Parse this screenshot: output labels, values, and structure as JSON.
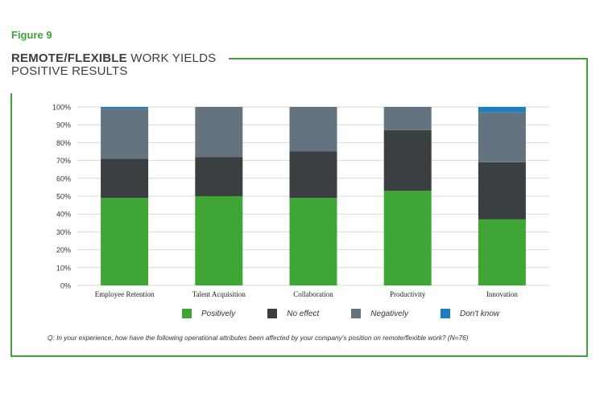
{
  "figure_label": "Figure 9",
  "title": {
    "bold": "REMOTE/FLEXIBLE",
    "line1_rest": " WORK YIELDS",
    "line2": "POSITIVE RESULTS"
  },
  "question": "Q: In your experience, how have the following operational attributes been affected by your company's position on remote/flexible work? (N=76)",
  "colors": {
    "frame": "#3fa535",
    "positively": "#3fa535",
    "no_effect": "#3a3f42",
    "negatively": "#637480",
    "dont_know": "#1c7ec1",
    "grid": "#d9d9d9"
  },
  "chart_data": {
    "type": "bar",
    "stacked": true,
    "categories": [
      "Employee Retention",
      "Talent Acquisition",
      "Collaboration",
      "Productivity",
      "Innovation"
    ],
    "series": [
      {
        "name": "Positively",
        "values": [
          49,
          50,
          49,
          53,
          37
        ]
      },
      {
        "name": "No effect",
        "values": [
          22,
          22,
          26,
          34,
          32
        ]
      },
      {
        "name": "Negatively",
        "values": [
          28,
          28,
          25,
          13,
          28
        ]
      },
      {
        "name": "Don't know",
        "values": [
          1,
          0,
          0,
          0,
          3
        ]
      }
    ],
    "ylim": [
      0,
      100
    ],
    "yticks": [
      "0%",
      "10%",
      "20%",
      "30%",
      "40%",
      "50%",
      "60%",
      "70%",
      "80%",
      "90%",
      "100%"
    ],
    "grid": true,
    "legend_position": "bottom"
  }
}
